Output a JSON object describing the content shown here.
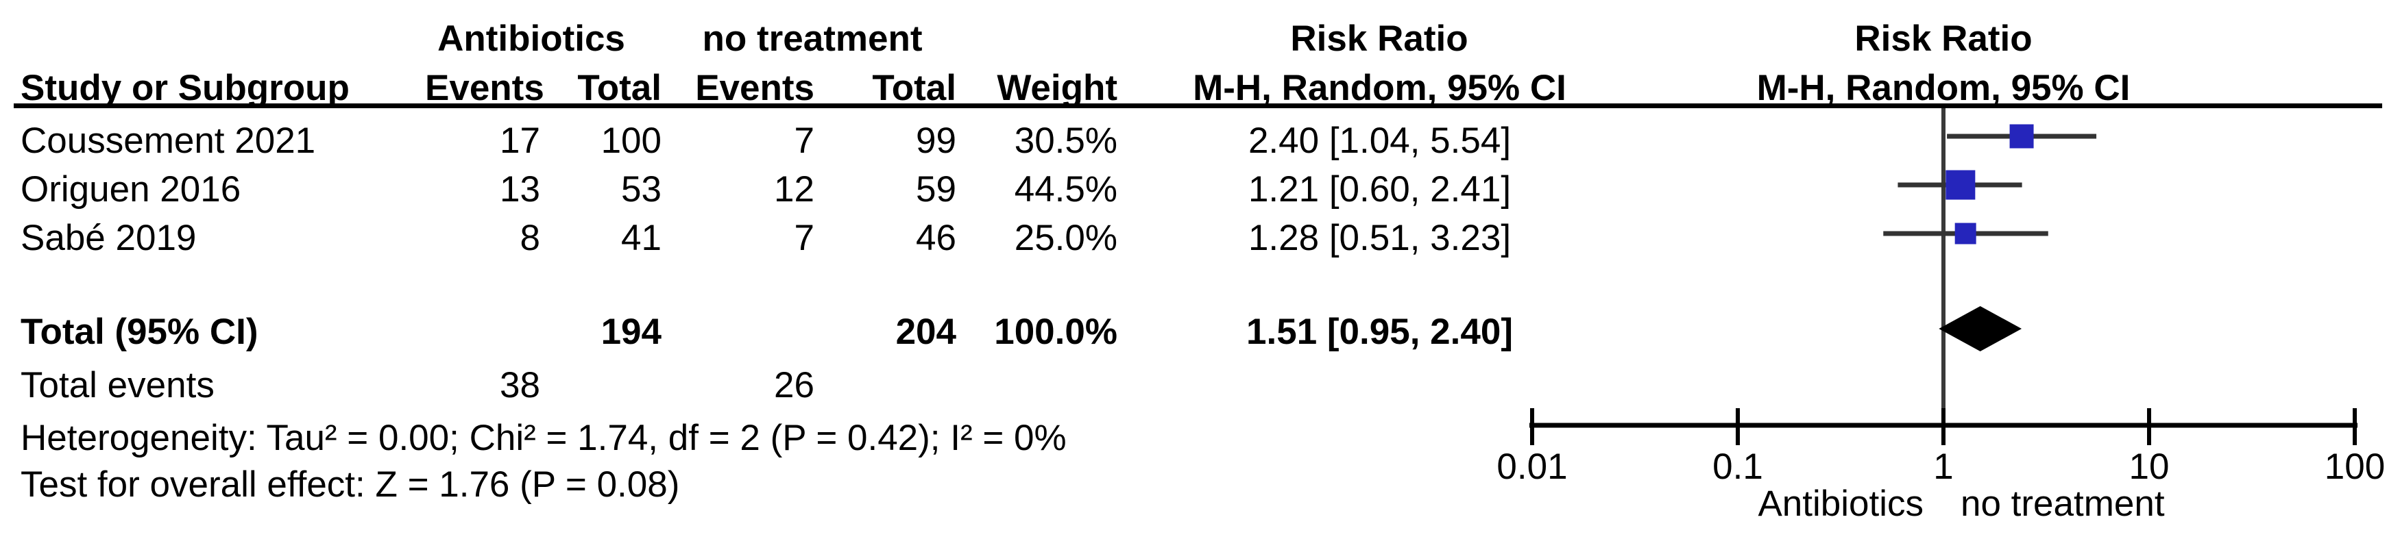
{
  "header": {
    "group1": "Antibiotics",
    "group2": "no treatment",
    "risk_ratio_table": "Risk Ratio",
    "risk_ratio_plot": "Risk Ratio",
    "mh_random_table": "M-H, Random, 95% CI",
    "mh_random_plot": "M-H, Random, 95% CI",
    "columns": {
      "study": "Study or Subgroup",
      "events1": "Events",
      "total1": "Total",
      "events2": "Events",
      "total2": "Total",
      "weight": "Weight"
    }
  },
  "rows": [
    {
      "study": "Coussement 2021",
      "events1": "17",
      "total1": "100",
      "events2": "7",
      "total2": "99",
      "weight": "30.5%",
      "rr_ci": "2.40 [1.04, 5.54]"
    },
    {
      "study": "Origuen 2016",
      "events1": "13",
      "total1": "53",
      "events2": "12",
      "total2": "59",
      "weight": "44.5%",
      "rr_ci": "1.21 [0.60, 2.41]"
    },
    {
      "study": "Sabé 2019",
      "events1": "8",
      "total1": "41",
      "events2": "7",
      "total2": "46",
      "weight": "25.0%",
      "rr_ci": "1.28 [0.51, 3.23]"
    }
  ],
  "total_row": {
    "label": "Total (95% CI)",
    "total1": "194",
    "total2": "204",
    "weight": "100.0%",
    "rr_ci": "1.51 [0.95, 2.40]"
  },
  "total_events": {
    "label": "Total events",
    "events1": "38",
    "events2": "26"
  },
  "heterogeneity": "Heterogeneity: Tau² = 0.00; Chi² = 1.74, df = 2 (P = 0.42); I² = 0%",
  "overall_effect": "Test for overall effect: Z = 1.76 (P = 0.08)",
  "axis": {
    "tick_labels": [
      "0.01",
      "0.1",
      "1",
      "10",
      "100"
    ],
    "label_left": "Antibiotics",
    "label_right": "no treatment"
  },
  "colors": {
    "square": "#2525bb",
    "ci_line": "#333333",
    "reference_line": "#3a3a3a",
    "axis": "#000000",
    "diamond": "#000000"
  },
  "chart_data": {
    "type": "forest",
    "effect_measure": "Risk Ratio, M-H, Random, 95% CI",
    "x_scale": "log",
    "x_ticks": [
      0.01,
      0.1,
      1,
      10,
      100
    ],
    "xlim": [
      0.01,
      100
    ],
    "reference_value": 1,
    "studies": [
      {
        "name": "Coussement 2021",
        "rr": 2.4,
        "ci_low": 1.04,
        "ci_high": 5.54,
        "weight": 30.5
      },
      {
        "name": "Origuen 2016",
        "rr": 1.21,
        "ci_low": 0.6,
        "ci_high": 2.41,
        "weight": 44.5
      },
      {
        "name": "Sabé 2019",
        "rr": 1.28,
        "ci_low": 0.51,
        "ci_high": 3.23,
        "weight": 25.0
      }
    ],
    "total": {
      "name": "Total (95% CI)",
      "rr": 1.51,
      "ci_low": 0.95,
      "ci_high": 2.4
    },
    "label_left": "Antibiotics",
    "label_right": "no treatment"
  }
}
